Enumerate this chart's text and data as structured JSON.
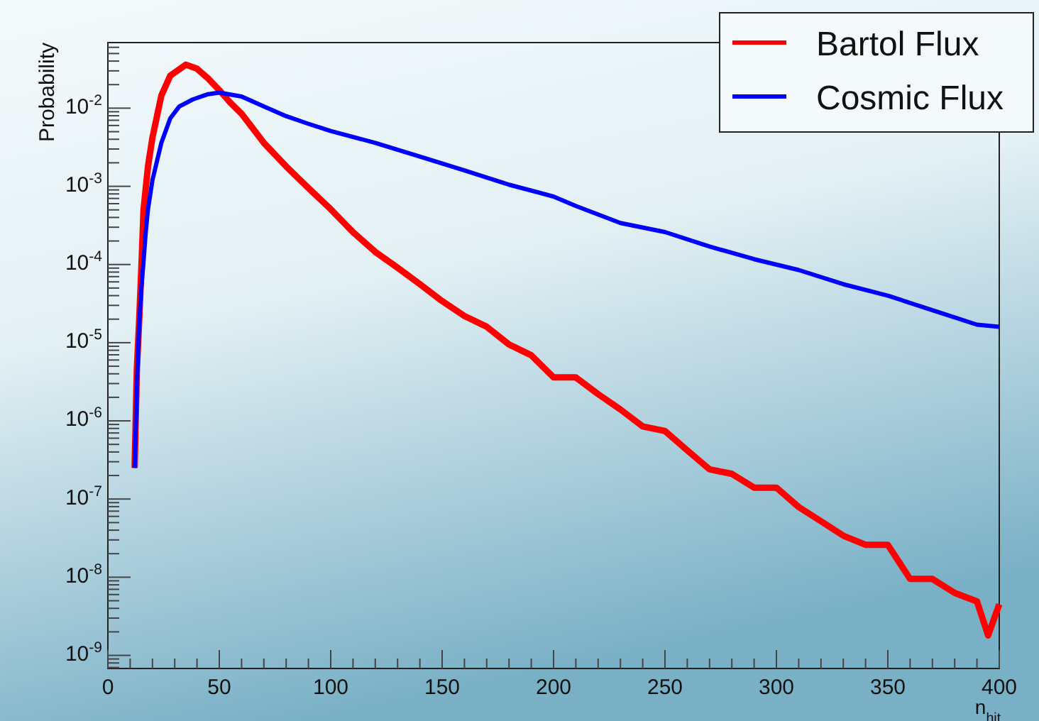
{
  "chart_data": {
    "type": "line",
    "xlabel": "n$_{hit}$",
    "ylabel": "Probability",
    "log": "y",
    "legend": "top right",
    "grid": false,
    "xlim": [
      0,
      400
    ],
    "xticks": [
      0,
      50,
      100,
      150,
      200,
      250,
      300,
      350,
      400
    ],
    "ylim": [
      6.8e-10,
      0.069
    ],
    "yticks": [
      {
        "value": 1e-09,
        "label": "10$^{-9}$"
      },
      {
        "value": 1e-08,
        "label": "10$^{-8}$"
      },
      {
        "value": 1e-07,
        "label": "10$^{-7}$"
      },
      {
        "value": 1e-06,
        "label": "10$^{-6}$"
      },
      {
        "value": 1e-05,
        "label": "10$^{-5}$"
      },
      {
        "value": 0.0001,
        "label": "10$^{-4}$"
      },
      {
        "value": 0.001,
        "label": "10$^{-3}$"
      },
      {
        "value": 0.01,
        "label": "10$^{-2}$"
      }
    ],
    "series": [
      {
        "name": "Bartol Flux",
        "color": "#ff0000",
        "x": [
          12,
          13,
          14,
          15,
          16,
          18,
          20,
          24,
          28,
          35,
          40,
          45,
          50,
          55,
          60,
          70,
          80,
          90,
          100,
          110,
          120,
          130,
          140,
          150,
          160,
          170,
          180,
          190,
          200,
          205,
          210,
          220,
          230,
          240,
          250,
          260,
          270,
          280,
          290,
          300,
          310,
          320,
          330,
          340,
          350,
          360,
          370,
          380,
          390,
          395,
          400
        ],
        "values": [
          2.5e-07,
          4.5e-06,
          1.8e-05,
          8.5e-05,
          0.0005,
          0.0018,
          0.0042,
          0.0145,
          0.026,
          0.036,
          0.032,
          0.024,
          0.017,
          0.0117,
          0.0085,
          0.0036,
          0.0018,
          0.00095,
          0.00051,
          0.00026,
          0.000145,
          9.1e-05,
          5.6e-05,
          3.4e-05,
          2.2e-05,
          1.6e-05,
          9.5e-06,
          6.9e-06,
          3.6e-06,
          3.6e-06,
          3.6e-06,
          2.2e-06,
          1.4e-06,
          8.5e-07,
          7.4e-07,
          4.2e-07,
          2.4e-07,
          2.1e-07,
          1.4e-07,
          1.4e-07,
          7.9e-08,
          5.2e-08,
          3.4e-08,
          2.6e-08,
          2.6e-08,
          9.5e-09,
          9.5e-09,
          6.3e-09,
          4.9e-09,
          1.8e-09,
          4.5e-09
        ]
      },
      {
        "name": "Cosmic Flux",
        "color": "#0000ff",
        "x": [
          12,
          13,
          14,
          15,
          16,
          17,
          18,
          20,
          24,
          28,
          32,
          38,
          45,
          50,
          60,
          70,
          80,
          90,
          100,
          120,
          140,
          160,
          180,
          200,
          210,
          230,
          250,
          270,
          290,
          310,
          330,
          350,
          370,
          390,
          400
        ],
        "values": [
          2.5e-07,
          2.6e-06,
          1.6e-05,
          4.9e-05,
          0.00011,
          0.00026,
          0.00051,
          0.0012,
          0.0036,
          0.0074,
          0.0105,
          0.0129,
          0.0151,
          0.0158,
          0.0141,
          0.0105,
          0.0079,
          0.0063,
          0.0051,
          0.0036,
          0.0024,
          0.0016,
          0.00105,
          0.00074,
          0.00056,
          0.00034,
          0.00026,
          0.00017,
          0.000117,
          8.5e-05,
          5.6e-05,
          4e-05,
          2.6e-05,
          1.7e-05,
          1.6e-05
        ]
      }
    ]
  }
}
